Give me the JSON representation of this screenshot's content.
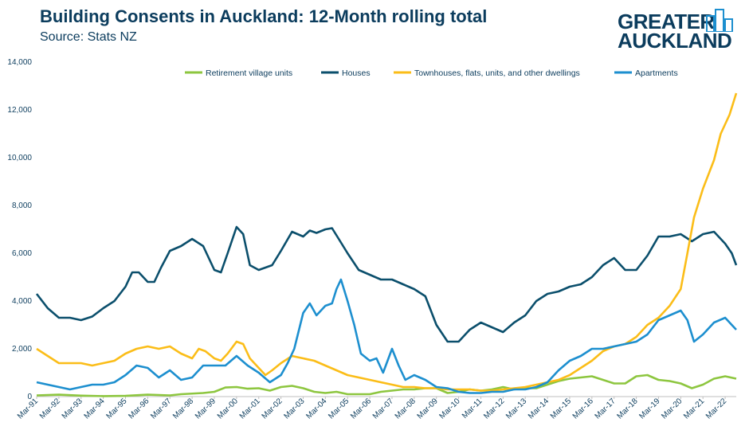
{
  "header": {
    "title": "Building Consents in Auckland: 12-Month rolling total",
    "subtitle": "Source: Stats NZ",
    "logo_line1": "GREATER",
    "logo_line2": "AUCKLAND"
  },
  "chart_data": {
    "type": "line",
    "ylim": [
      0,
      14000
    ],
    "yticks": [
      "0",
      "2,000",
      "4,000",
      "6,000",
      "8,000",
      "10,000",
      "12,000",
      "14,000"
    ],
    "xticks": [
      "Mar-91",
      "Mar-92",
      "Mar-93",
      "Mar-94",
      "Mar-95",
      "Mar-96",
      "Mar-97",
      "Mar-98",
      "Mar-99",
      "Mar-00",
      "Mar-01",
      "Mar-02",
      "Mar-03",
      "Mar-04",
      "Mar-05",
      "Mar-06",
      "Mar-07",
      "Mar-08",
      "Mar-09",
      "Mar-10",
      "Mar-11",
      "Mar-12",
      "Mar-13",
      "Mar-14",
      "Mar-15",
      "Mar-16",
      "Mar-17",
      "Mar-18",
      "Mar-19",
      "Mar-20",
      "Mar-21",
      "Mar-22"
    ],
    "x_start_year": 1991.0,
    "x_end_year": 2022.5,
    "series": [
      {
        "name": "Retirement village units",
        "color": "#8dc63f",
        "points": [
          [
            1991.0,
            50
          ],
          [
            1992.0,
            80
          ],
          [
            1993.0,
            40
          ],
          [
            1994.0,
            20
          ],
          [
            1995.0,
            30
          ],
          [
            1996.0,
            80
          ],
          [
            1997.0,
            50
          ],
          [
            1997.5,
            100
          ],
          [
            1998.5,
            150
          ],
          [
            1999.0,
            200
          ],
          [
            1999.5,
            380
          ],
          [
            2000.0,
            400
          ],
          [
            2000.5,
            330
          ],
          [
            2001.0,
            350
          ],
          [
            2001.5,
            250
          ],
          [
            2002.0,
            400
          ],
          [
            2002.5,
            450
          ],
          [
            2003.0,
            350
          ],
          [
            2003.5,
            200
          ],
          [
            2004.0,
            150
          ],
          [
            2004.5,
            200
          ],
          [
            2005.0,
            100
          ],
          [
            2006.0,
            100
          ],
          [
            2006.5,
            200
          ],
          [
            2007.0,
            250
          ],
          [
            2007.5,
            300
          ],
          [
            2008.0,
            300
          ],
          [
            2008.5,
            350
          ],
          [
            2009.0,
            350
          ],
          [
            2009.5,
            150
          ],
          [
            2010.0,
            200
          ],
          [
            2010.5,
            300
          ],
          [
            2011.0,
            250
          ],
          [
            2011.5,
            300
          ],
          [
            2012.0,
            400
          ],
          [
            2012.5,
            300
          ],
          [
            2013.0,
            350
          ],
          [
            2013.5,
            350
          ],
          [
            2014.0,
            500
          ],
          [
            2014.5,
            650
          ],
          [
            2015.0,
            750
          ],
          [
            2015.5,
            800
          ],
          [
            2016.0,
            850
          ],
          [
            2016.5,
            700
          ],
          [
            2017.0,
            550
          ],
          [
            2017.5,
            550
          ],
          [
            2018.0,
            850
          ],
          [
            2018.5,
            900
          ],
          [
            2019.0,
            700
          ],
          [
            2019.5,
            650
          ],
          [
            2020.0,
            550
          ],
          [
            2020.5,
            350
          ],
          [
            2021.0,
            500
          ],
          [
            2021.5,
            750
          ],
          [
            2022.0,
            850
          ],
          [
            2022.5,
            750
          ]
        ]
      },
      {
        "name": "Houses",
        "color": "#0b4f6c",
        "points": [
          [
            1991.0,
            4300
          ],
          [
            1991.5,
            3700
          ],
          [
            1992.0,
            3300
          ],
          [
            1992.5,
            3300
          ],
          [
            1993.0,
            3200
          ],
          [
            1993.5,
            3350
          ],
          [
            1994.0,
            3700
          ],
          [
            1994.5,
            4000
          ],
          [
            1995.0,
            4600
          ],
          [
            1995.3,
            5200
          ],
          [
            1995.6,
            5200
          ],
          [
            1996.0,
            4800
          ],
          [
            1996.3,
            4800
          ],
          [
            1996.6,
            5400
          ],
          [
            1997.0,
            6100
          ],
          [
            1997.5,
            6300
          ],
          [
            1998.0,
            6600
          ],
          [
            1998.5,
            6300
          ],
          [
            1999.0,
            5300
          ],
          [
            1999.3,
            5200
          ],
          [
            1999.6,
            6000
          ],
          [
            2000.0,
            7100
          ],
          [
            2000.3,
            6800
          ],
          [
            2000.6,
            5500
          ],
          [
            2001.0,
            5300
          ],
          [
            2001.3,
            5400
          ],
          [
            2001.6,
            5500
          ],
          [
            2002.0,
            6100
          ],
          [
            2002.5,
            6900
          ],
          [
            2003.0,
            6700
          ],
          [
            2003.3,
            6950
          ],
          [
            2003.6,
            6850
          ],
          [
            2004.0,
            7000
          ],
          [
            2004.3,
            7050
          ],
          [
            2004.6,
            6600
          ],
          [
            2005.0,
            6000
          ],
          [
            2005.5,
            5300
          ],
          [
            2006.0,
            5100
          ],
          [
            2006.5,
            4900
          ],
          [
            2007.0,
            4900
          ],
          [
            2007.5,
            4700
          ],
          [
            2008.0,
            4500
          ],
          [
            2008.5,
            4200
          ],
          [
            2009.0,
            3000
          ],
          [
            2009.5,
            2300
          ],
          [
            2010.0,
            2300
          ],
          [
            2010.5,
            2800
          ],
          [
            2011.0,
            3100
          ],
          [
            2011.5,
            2900
          ],
          [
            2012.0,
            2700
          ],
          [
            2012.5,
            3100
          ],
          [
            2013.0,
            3400
          ],
          [
            2013.5,
            4000
          ],
          [
            2014.0,
            4300
          ],
          [
            2014.5,
            4400
          ],
          [
            2015.0,
            4600
          ],
          [
            2015.5,
            4700
          ],
          [
            2016.0,
            5000
          ],
          [
            2016.5,
            5500
          ],
          [
            2017.0,
            5800
          ],
          [
            2017.5,
            5300
          ],
          [
            2018.0,
            5300
          ],
          [
            2018.5,
            5900
          ],
          [
            2019.0,
            6700
          ],
          [
            2019.5,
            6700
          ],
          [
            2020.0,
            6800
          ],
          [
            2020.5,
            6500
          ],
          [
            2021.0,
            6800
          ],
          [
            2021.5,
            6900
          ],
          [
            2022.0,
            6400
          ],
          [
            2022.3,
            6000
          ],
          [
            2022.5,
            5500
          ]
        ]
      },
      {
        "name": "Townhouses, flats, units, and other dwellings",
        "color": "#fbbd18",
        "points": [
          [
            1991.0,
            2000
          ],
          [
            1991.5,
            1700
          ],
          [
            1992.0,
            1400
          ],
          [
            1992.5,
            1400
          ],
          [
            1993.0,
            1400
          ],
          [
            1993.5,
            1300
          ],
          [
            1994.0,
            1400
          ],
          [
            1994.5,
            1500
          ],
          [
            1995.0,
            1800
          ],
          [
            1995.5,
            2000
          ],
          [
            1996.0,
            2100
          ],
          [
            1996.5,
            2000
          ],
          [
            1997.0,
            2100
          ],
          [
            1997.5,
            1800
          ],
          [
            1998.0,
            1600
          ],
          [
            1998.3,
            2000
          ],
          [
            1998.6,
            1900
          ],
          [
            1999.0,
            1600
          ],
          [
            1999.3,
            1500
          ],
          [
            1999.6,
            1800
          ],
          [
            2000.0,
            2300
          ],
          [
            2000.3,
            2200
          ],
          [
            2000.6,
            1600
          ],
          [
            2001.0,
            1200
          ],
          [
            2001.3,
            900
          ],
          [
            2001.6,
            1100
          ],
          [
            2002.0,
            1400
          ],
          [
            2002.5,
            1700
          ],
          [
            2003.0,
            1600
          ],
          [
            2003.5,
            1500
          ],
          [
            2004.0,
            1300
          ],
          [
            2004.5,
            1100
          ],
          [
            2005.0,
            900
          ],
          [
            2005.5,
            800
          ],
          [
            2006.0,
            700
          ],
          [
            2006.5,
            600
          ],
          [
            2007.0,
            500
          ],
          [
            2007.5,
            400
          ],
          [
            2008.0,
            400
          ],
          [
            2008.5,
            350
          ],
          [
            2009.0,
            350
          ],
          [
            2009.5,
            300
          ],
          [
            2010.0,
            300
          ],
          [
            2010.5,
            300
          ],
          [
            2011.0,
            250
          ],
          [
            2011.5,
            250
          ],
          [
            2012.0,
            300
          ],
          [
            2012.5,
            350
          ],
          [
            2013.0,
            400
          ],
          [
            2013.5,
            500
          ],
          [
            2014.0,
            600
          ],
          [
            2014.5,
            700
          ],
          [
            2015.0,
            900
          ],
          [
            2015.5,
            1200
          ],
          [
            2016.0,
            1500
          ],
          [
            2016.5,
            1900
          ],
          [
            2017.0,
            2100
          ],
          [
            2017.5,
            2200
          ],
          [
            2018.0,
            2500
          ],
          [
            2018.5,
            3000
          ],
          [
            2019.0,
            3300
          ],
          [
            2019.5,
            3800
          ],
          [
            2020.0,
            4500
          ],
          [
            2020.3,
            6000
          ],
          [
            2020.6,
            7500
          ],
          [
            2021.0,
            8700
          ],
          [
            2021.5,
            9900
          ],
          [
            2021.8,
            11000
          ],
          [
            2022.2,
            11800
          ],
          [
            2022.5,
            12700
          ]
        ]
      },
      {
        "name": "Apartments",
        "color": "#1d8fcf",
        "points": [
          [
            1991.0,
            600
          ],
          [
            1991.5,
            500
          ],
          [
            1992.0,
            400
          ],
          [
            1992.5,
            300
          ],
          [
            1993.0,
            400
          ],
          [
            1993.5,
            500
          ],
          [
            1994.0,
            500
          ],
          [
            1994.5,
            600
          ],
          [
            1995.0,
            900
          ],
          [
            1995.5,
            1300
          ],
          [
            1996.0,
            1200
          ],
          [
            1996.5,
            800
          ],
          [
            1997.0,
            1100
          ],
          [
            1997.5,
            700
          ],
          [
            1998.0,
            800
          ],
          [
            1998.5,
            1300
          ],
          [
            1999.0,
            1300
          ],
          [
            1999.5,
            1300
          ],
          [
            2000.0,
            1700
          ],
          [
            2000.5,
            1300
          ],
          [
            2001.0,
            1000
          ],
          [
            2001.5,
            600
          ],
          [
            2002.0,
            900
          ],
          [
            2002.3,
            1400
          ],
          [
            2002.6,
            2000
          ],
          [
            2003.0,
            3500
          ],
          [
            2003.3,
            3900
          ],
          [
            2003.6,
            3400
          ],
          [
            2004.0,
            3800
          ],
          [
            2004.3,
            3900
          ],
          [
            2004.5,
            4500
          ],
          [
            2004.7,
            4900
          ],
          [
            2005.0,
            4000
          ],
          [
            2005.3,
            3000
          ],
          [
            2005.6,
            1800
          ],
          [
            2006.0,
            1500
          ],
          [
            2006.3,
            1600
          ],
          [
            2006.6,
            1000
          ],
          [
            2007.0,
            2000
          ],
          [
            2007.3,
            1300
          ],
          [
            2007.6,
            700
          ],
          [
            2008.0,
            900
          ],
          [
            2008.5,
            700
          ],
          [
            2009.0,
            400
          ],
          [
            2009.5,
            350
          ],
          [
            2010.0,
            200
          ],
          [
            2010.5,
            150
          ],
          [
            2011.0,
            150
          ],
          [
            2011.5,
            200
          ],
          [
            2012.0,
            200
          ],
          [
            2012.5,
            300
          ],
          [
            2013.0,
            300
          ],
          [
            2013.5,
            400
          ],
          [
            2014.0,
            600
          ],
          [
            2014.5,
            1100
          ],
          [
            2015.0,
            1500
          ],
          [
            2015.5,
            1700
          ],
          [
            2016.0,
            2000
          ],
          [
            2016.5,
            2000
          ],
          [
            2017.0,
            2100
          ],
          [
            2017.5,
            2200
          ],
          [
            2018.0,
            2300
          ],
          [
            2018.5,
            2600
          ],
          [
            2019.0,
            3200
          ],
          [
            2019.5,
            3400
          ],
          [
            2020.0,
            3600
          ],
          [
            2020.3,
            3200
          ],
          [
            2020.6,
            2300
          ],
          [
            2021.0,
            2600
          ],
          [
            2021.5,
            3100
          ],
          [
            2022.0,
            3300
          ],
          [
            2022.3,
            3000
          ],
          [
            2022.5,
            2800
          ]
        ]
      }
    ]
  }
}
